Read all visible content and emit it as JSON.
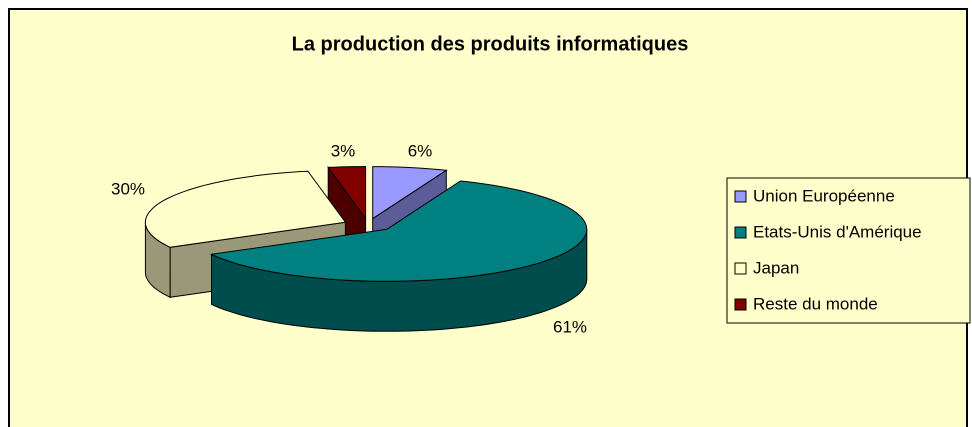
{
  "chart_data": {
    "type": "pie3d",
    "title": "La production des produits informatiques",
    "categories": [
      "Union Européenne",
      "Etats-Unis d'Amérique",
      "Japan",
      "Reste du monde"
    ],
    "values": [
      6,
      61,
      30,
      3
    ],
    "value_labels": [
      "6%",
      "61%",
      "30%",
      "3%"
    ],
    "colors": [
      "#9999ff",
      "#008080",
      "#ffffcc",
      "#800000"
    ],
    "legend": "right"
  }
}
